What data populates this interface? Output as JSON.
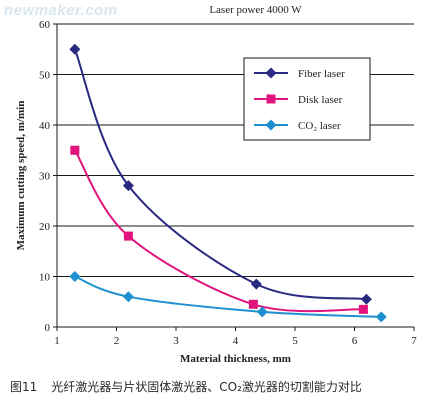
{
  "watermark": "newmaker.com",
  "caption": {
    "figure_label": "图11",
    "text": "光纤激光器与片状固体激光器、CO₂激光器的切割能力对比"
  },
  "chart_data": {
    "type": "line",
    "title": "Laser power 4000 W",
    "xlabel": "Material thickness, mm",
    "ylabel": "Maximum cutting speed, m/min",
    "xlim": [
      1,
      7
    ],
    "ylim": [
      0,
      60
    ],
    "xticks": [
      1,
      2,
      3,
      4,
      5,
      6,
      7
    ],
    "yticks": [
      0,
      10,
      20,
      30,
      40,
      50,
      60
    ],
    "grid": "horizontal",
    "legend_position": "top-right",
    "series": [
      {
        "name": "Fiber laser",
        "color": "#2a2a82",
        "marker": "diamond",
        "x": [
          1.3,
          2.2,
          4.35,
          6.2
        ],
        "y": [
          55,
          28,
          8.5,
          5.5
        ]
      },
      {
        "name": "Disk laser",
        "color": "#e0147c",
        "marker": "square",
        "x": [
          1.3,
          2.2,
          4.3,
          6.15
        ],
        "y": [
          35,
          18,
          4.5,
          3.5
        ]
      },
      {
        "name": "CO₂ laser",
        "color": "#1e90d0",
        "marker": "diamond",
        "x": [
          1.3,
          2.2,
          4.45,
          6.45
        ],
        "y": [
          10,
          6,
          3,
          2
        ]
      }
    ]
  }
}
